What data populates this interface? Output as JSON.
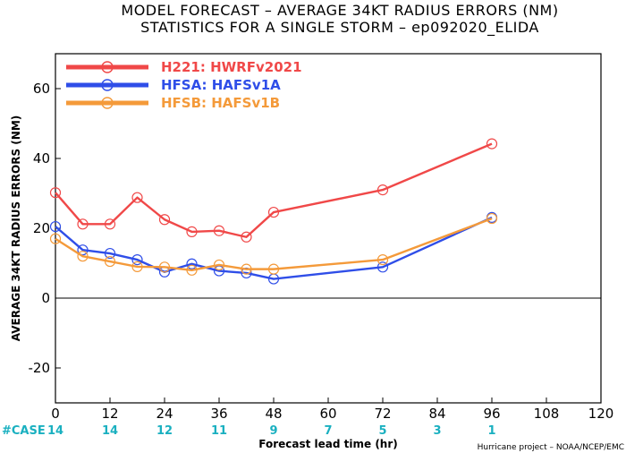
{
  "chart_data": {
    "type": "line",
    "title": "MODEL FORECAST – AVERAGE 34KT RADIUS ERRORS (NM)",
    "subtitle": "STATISTICS FOR A SINGLE STORM – ep092020_ELIDA",
    "xlabel": "Forecast lead time (hr)",
    "ylabel": "AVERAGE 34KT RADIUS ERRORS (NM)",
    "xlim": [
      0,
      120
    ],
    "ylim": [
      -30,
      70
    ],
    "xticks": [
      0,
      12,
      24,
      36,
      48,
      60,
      72,
      84,
      96,
      108,
      120
    ],
    "yticks": [
      -20,
      0,
      20,
      40,
      60
    ],
    "grid": false,
    "legend_position": "top-left",
    "series": [
      {
        "name": "H221: HWRFv2021",
        "color": "#f04848",
        "x": [
          0,
          6,
          12,
          18,
          24,
          30,
          36,
          42,
          48,
          72,
          96
        ],
        "y": [
          30.2,
          21.2,
          21.2,
          28.8,
          22.5,
          19.0,
          19.3,
          17.5,
          24.6,
          31.0,
          44.2
        ]
      },
      {
        "name": "HFSA: HAFSv1A",
        "color": "#2f4ee8",
        "x": [
          0,
          6,
          12,
          18,
          24,
          30,
          36,
          42,
          48,
          72,
          96
        ],
        "y": [
          20.5,
          13.8,
          12.8,
          11.0,
          7.5,
          9.8,
          7.8,
          7.2,
          5.5,
          8.9,
          23.1
        ]
      },
      {
        "name": "HFSB: HAFSv1B",
        "color": "#f49a3a",
        "x": [
          0,
          6,
          12,
          18,
          24,
          30,
          36,
          42,
          48,
          72,
          96
        ],
        "y": [
          17.0,
          12.0,
          10.5,
          9.0,
          8.9,
          8.0,
          9.5,
          8.3,
          8.3,
          11.0,
          22.8
        ]
      }
    ],
    "cases": {
      "label": "#CASE",
      "color": "#1ab0c0",
      "x": [
        0,
        12,
        24,
        36,
        48,
        60,
        72,
        84,
        96
      ],
      "values": [
        "14",
        "14",
        "12",
        "11",
        "9",
        "7",
        "5",
        "3",
        "1"
      ]
    },
    "credit": "Hurricane project – NOAA/NCEP/EMC"
  }
}
